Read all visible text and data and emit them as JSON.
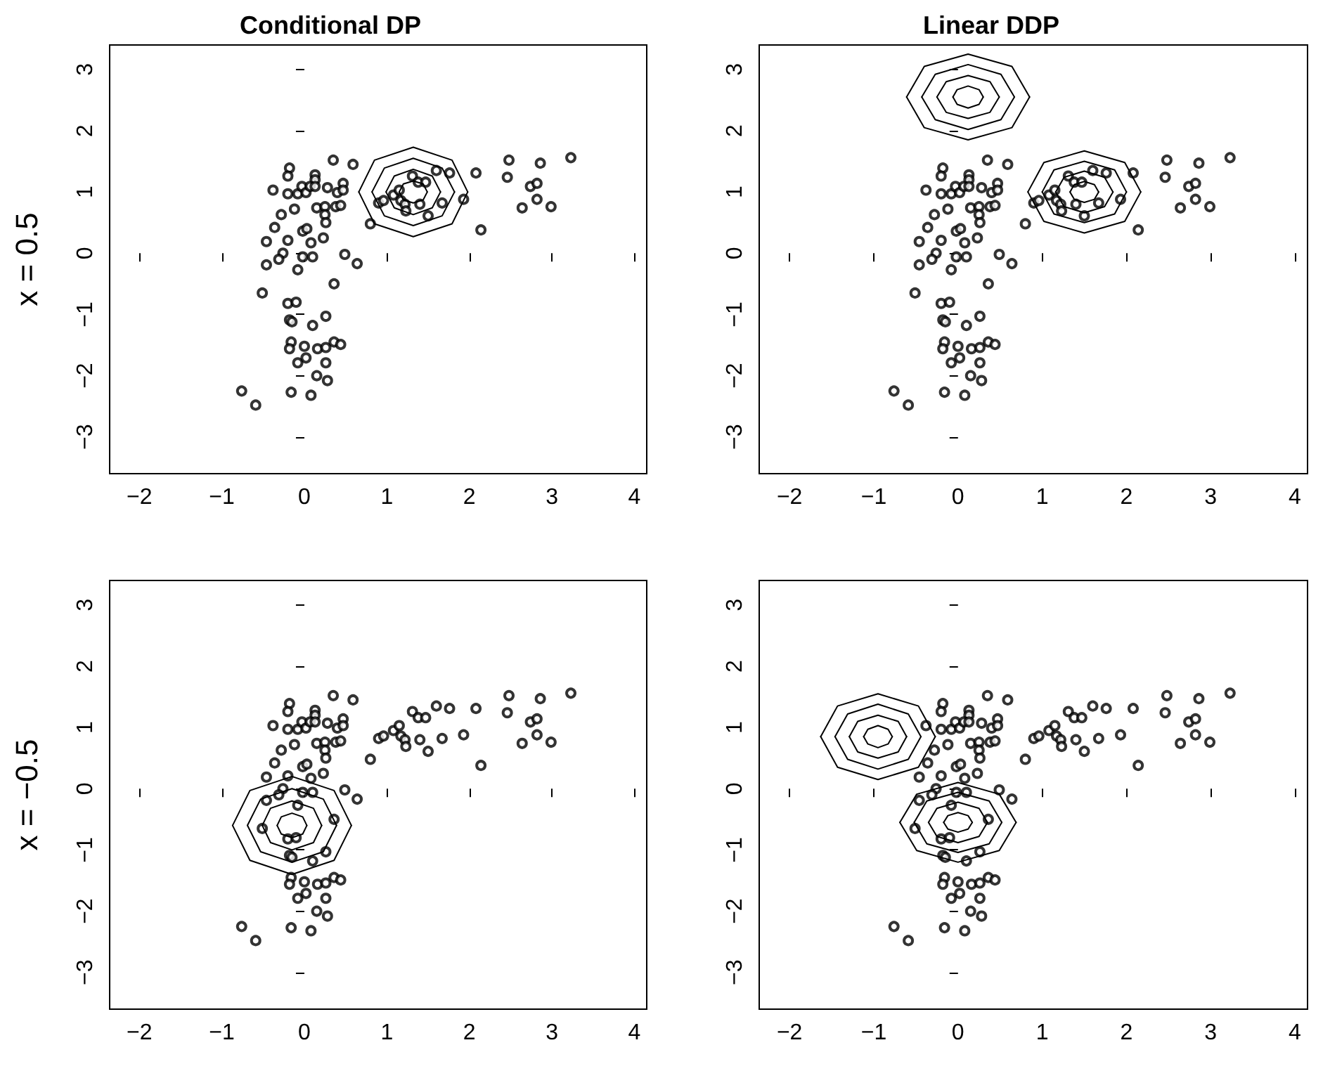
{
  "chart_data": [
    {
      "type": "scatter",
      "title": "Conditional DP",
      "ylabel": "x = 0.5",
      "xlim": [
        -2.36,
        4.15
      ],
      "ylim": [
        -3.6,
        3.4
      ],
      "xticks": [
        -2,
        -1,
        0,
        1,
        2,
        3,
        4
      ],
      "yticks": [
        -3,
        -2,
        -1,
        0,
        1,
        2,
        3
      ],
      "grid": false,
      "line_style": "solid",
      "series": [
        {
          "marker": "circle",
          "color": "#000000",
          "x": [
            -0.18,
            -0.2,
            0.35,
            0.59,
            0.13,
            0.13,
            -0.38,
            -0.2,
            -0.08,
            -0.03,
            0.02,
            0.07,
            0.13,
            0.28,
            0.4,
            0.47,
            0.47,
            -0.12,
            -0.28,
            0.15,
            0.25,
            0.38,
            0.44,
            0.25,
            0.26,
            -0.36,
            -0.02,
            0.03,
            -0.46,
            -0.2,
            0.08,
            0.23,
            -0.26,
            -0.31,
            -0.02,
            0.1,
            0.49,
            0.64,
            -0.46,
            -0.08,
            0.36,
            -0.51,
            -0.2,
            -0.1,
            -0.18,
            -0.15,
            0.26,
            0.1,
            -0.16,
            -0.18,
            0.0,
            0.16,
            0.26,
            0.36,
            0.44,
            -0.08,
            0.02,
            0.26,
            0.15,
            0.28,
            -0.76,
            -0.59,
            -0.16,
            0.08,
            0.8,
            0.9,
            0.96,
            1.08,
            1.15,
            1.17,
            1.22,
            1.23,
            1.31,
            1.38,
            1.47,
            1.4,
            1.5,
            1.6,
            1.67,
            1.76,
            1.93,
            2.08,
            2.14,
            2.48,
            2.86,
            3.23,
            2.46,
            2.74,
            2.82,
            2.82,
            2.64,
            2.99
          ],
          "values": [
            1.39,
            1.26,
            1.52,
            1.45,
            1.28,
            1.2,
            1.03,
            0.97,
            0.97,
            1.09,
            0.99,
            1.09,
            1.09,
            1.07,
            0.99,
            1.14,
            1.03,
            0.72,
            0.63,
            0.74,
            0.76,
            0.76,
            0.78,
            0.63,
            0.5,
            0.42,
            0.36,
            0.4,
            0.19,
            0.21,
            0.17,
            0.25,
            0.0,
            -0.1,
            -0.06,
            -0.06,
            -0.02,
            -0.17,
            -0.19,
            -0.27,
            -0.5,
            -0.65,
            -0.82,
            -0.8,
            -1.09,
            -1.12,
            -1.03,
            -1.18,
            -1.45,
            -1.56,
            -1.52,
            -1.56,
            -1.54,
            -1.45,
            -1.49,
            -1.79,
            -1.71,
            -1.79,
            -2.0,
            -2.08,
            -2.25,
            -2.48,
            -2.27,
            -2.32,
            0.48,
            0.82,
            0.86,
            0.95,
            1.03,
            0.86,
            0.8,
            0.69,
            1.26,
            1.16,
            1.16,
            0.8,
            0.61,
            1.35,
            0.82,
            1.31,
            0.88,
            1.31,
            0.38,
            1.52,
            1.47,
            1.56,
            1.24,
            1.09,
            1.14,
            0.88,
            0.74,
            0.76
          ]
        },
        {
          "type": "line",
          "marker": "none",
          "color": "#000000",
          "x": [
            0.66,
            0.85,
            1.32,
            1.79,
            1.98
          ],
          "values": [
            1.0,
            1.52,
            1.73,
            1.52,
            1.0
          ]
        },
        {
          "type": "line",
          "marker": "none",
          "color": "#000000",
          "x": [
            0.66,
            0.85,
            1.32,
            1.79,
            1.98
          ],
          "values": [
            1.0,
            0.48,
            0.27,
            0.48,
            1.0
          ]
        },
        {
          "type": "line",
          "marker": "none",
          "color": "#000000",
          "x": [
            0.82,
            0.97,
            1.32,
            1.67,
            1.82
          ],
          "values": [
            1.0,
            1.39,
            1.55,
            1.39,
            1.0
          ]
        },
        {
          "type": "line",
          "marker": "none",
          "color": "#000000",
          "x": [
            0.82,
            0.97,
            1.32,
            1.67,
            1.82
          ],
          "values": [
            1.0,
            0.61,
            0.45,
            0.61,
            1.0
          ]
        },
        {
          "type": "line",
          "marker": "none",
          "color": "#000000",
          "x": [
            0.99,
            1.09,
            1.32,
            1.55,
            1.65
          ],
          "values": [
            1.0,
            1.26,
            1.37,
            1.26,
            1.0
          ]
        },
        {
          "type": "line",
          "marker": "none",
          "color": "#000000",
          "x": [
            0.99,
            1.09,
            1.32,
            1.55,
            1.65
          ],
          "values": [
            1.0,
            0.74,
            0.63,
            0.74,
            1.0
          ]
        },
        {
          "type": "line",
          "marker": "none",
          "color": "#000000",
          "x": [
            1.15,
            1.2,
            1.32,
            1.44,
            1.49
          ],
          "values": [
            1.0,
            1.13,
            1.18,
            1.13,
            1.0
          ]
        },
        {
          "type": "line",
          "marker": "none",
          "color": "#000000",
          "x": [
            1.15,
            1.2,
            1.32,
            1.44,
            1.49
          ],
          "values": [
            1.0,
            0.87,
            0.82,
            0.87,
            1.0
          ]
        }
      ]
    },
    {
      "type": "scatter",
      "title": "Linear DDP",
      "xlim": [
        -2.36,
        4.15
      ],
      "ylim": [
        -3.6,
        3.4
      ],
      "xticks": [
        -2,
        -1,
        0,
        1,
        2,
        3,
        4
      ],
      "yticks": [
        -3,
        -2,
        -1,
        0,
        1,
        2,
        3
      ],
      "grid": false,
      "line_style": "solid",
      "series": [
        {
          "marker": "circle",
          "color": "#000000",
          "x": [
            -0.18,
            -0.2,
            0.35,
            0.59,
            0.13,
            0.13,
            -0.38,
            -0.2,
            -0.08,
            -0.03,
            0.02,
            0.07,
            0.13,
            0.28,
            0.4,
            0.47,
            0.47,
            -0.12,
            -0.28,
            0.15,
            0.25,
            0.38,
            0.44,
            0.25,
            0.26,
            -0.36,
            -0.02,
            0.03,
            -0.46,
            -0.2,
            0.08,
            0.23,
            -0.26,
            -0.31,
            -0.02,
            0.1,
            0.49,
            0.64,
            -0.46,
            -0.08,
            0.36,
            -0.51,
            -0.2,
            -0.1,
            -0.18,
            -0.15,
            0.26,
            0.1,
            -0.16,
            -0.18,
            0.0,
            0.16,
            0.26,
            0.36,
            0.44,
            -0.08,
            0.02,
            0.26,
            0.15,
            0.28,
            -0.76,
            -0.59,
            -0.16,
            0.08,
            0.8,
            0.9,
            0.96,
            1.08,
            1.15,
            1.17,
            1.22,
            1.23,
            1.31,
            1.38,
            1.47,
            1.4,
            1.5,
            1.6,
            1.67,
            1.76,
            1.93,
            2.08,
            2.14,
            2.48,
            2.86,
            3.23,
            2.46,
            2.74,
            2.82,
            2.82,
            2.64,
            2.99
          ],
          "values": [
            1.39,
            1.26,
            1.52,
            1.45,
            1.28,
            1.2,
            1.03,
            0.97,
            0.97,
            1.09,
            0.99,
            1.09,
            1.09,
            1.07,
            0.99,
            1.14,
            1.03,
            0.72,
            0.63,
            0.74,
            0.76,
            0.76,
            0.78,
            0.63,
            0.5,
            0.42,
            0.36,
            0.4,
            0.19,
            0.21,
            0.17,
            0.25,
            0.0,
            -0.1,
            -0.06,
            -0.06,
            -0.02,
            -0.17,
            -0.19,
            -0.27,
            -0.5,
            -0.65,
            -0.82,
            -0.8,
            -1.09,
            -1.12,
            -1.03,
            -1.18,
            -1.45,
            -1.56,
            -1.52,
            -1.56,
            -1.54,
            -1.45,
            -1.49,
            -1.79,
            -1.71,
            -1.79,
            -2.0,
            -2.08,
            -2.25,
            -2.48,
            -2.27,
            -2.32,
            0.48,
            0.82,
            0.86,
            0.95,
            1.03,
            0.86,
            0.8,
            0.69,
            1.26,
            1.16,
            1.16,
            0.8,
            0.61,
            1.35,
            0.82,
            1.31,
            0.88,
            1.31,
            0.38,
            1.52,
            1.47,
            1.56,
            1.24,
            1.09,
            1.14,
            0.88,
            0.74,
            0.76
          ]
        },
        {
          "type": "line",
          "marker": "none",
          "color": "#000000",
          "x": [
            -0.61,
            -0.4,
            0.12,
            0.64,
            0.85
          ],
          "values": [
            2.55,
            3.05,
            3.25,
            3.05,
            2.55
          ]
        },
        {
          "type": "line",
          "marker": "none",
          "color": "#000000",
          "x": [
            -0.61,
            -0.4,
            0.12,
            0.64,
            0.85
          ],
          "values": [
            2.55,
            2.05,
            1.85,
            2.05,
            2.55
          ]
        },
        {
          "type": "line",
          "marker": "none",
          "color": "#000000",
          "x": [
            -0.43,
            -0.27,
            0.12,
            0.51,
            0.67
          ],
          "values": [
            2.55,
            2.92,
            3.08,
            2.92,
            2.55
          ]
        },
        {
          "type": "line",
          "marker": "none",
          "color": "#000000",
          "x": [
            -0.43,
            -0.27,
            0.12,
            0.51,
            0.67
          ],
          "values": [
            2.55,
            2.18,
            2.02,
            2.18,
            2.55
          ]
        },
        {
          "type": "line",
          "marker": "none",
          "color": "#000000",
          "x": [
            -0.25,
            -0.14,
            0.12,
            0.38,
            0.49
          ],
          "values": [
            2.55,
            2.8,
            2.9,
            2.8,
            2.55
          ]
        },
        {
          "type": "line",
          "marker": "none",
          "color": "#000000",
          "x": [
            -0.25,
            -0.14,
            0.12,
            0.38,
            0.49
          ],
          "values": [
            2.55,
            2.3,
            2.2,
            2.3,
            2.55
          ]
        },
        {
          "type": "line",
          "marker": "none",
          "color": "#000000",
          "x": [
            -0.06,
            -0.01,
            0.12,
            0.25,
            0.3
          ],
          "values": [
            2.55,
            2.67,
            2.73,
            2.67,
            2.55
          ]
        },
        {
          "type": "line",
          "marker": "none",
          "color": "#000000",
          "x": [
            -0.06,
            -0.01,
            0.12,
            0.25,
            0.3
          ],
          "values": [
            2.55,
            2.43,
            2.37,
            2.43,
            2.55
          ]
        },
        {
          "type": "line",
          "marker": "none",
          "color": "#000000",
          "x": [
            0.83,
            1.02,
            1.5,
            1.98,
            2.17
          ],
          "values": [
            1.0,
            1.48,
            1.67,
            1.48,
            1.0
          ]
        },
        {
          "type": "line",
          "marker": "none",
          "color": "#000000",
          "x": [
            0.83,
            1.02,
            1.5,
            1.98,
            2.17
          ],
          "values": [
            1.0,
            0.52,
            0.33,
            0.52,
            1.0
          ]
        },
        {
          "type": "line",
          "marker": "none",
          "color": "#000000",
          "x": [
            1.0,
            1.14,
            1.5,
            1.86,
            2.0
          ],
          "values": [
            1.0,
            1.36,
            1.5,
            1.36,
            1.0
          ]
        },
        {
          "type": "line",
          "marker": "none",
          "color": "#000000",
          "x": [
            1.0,
            1.14,
            1.5,
            1.86,
            2.0
          ],
          "values": [
            1.0,
            0.64,
            0.5,
            0.64,
            1.0
          ]
        },
        {
          "type": "line",
          "marker": "none",
          "color": "#000000",
          "x": [
            1.16,
            1.26,
            1.5,
            1.74,
            1.84
          ],
          "values": [
            1.0,
            1.24,
            1.34,
            1.24,
            1.0
          ]
        },
        {
          "type": "line",
          "marker": "none",
          "color": "#000000",
          "x": [
            1.16,
            1.26,
            1.5,
            1.74,
            1.84
          ],
          "values": [
            1.0,
            0.76,
            0.66,
            0.76,
            1.0
          ]
        },
        {
          "type": "line",
          "marker": "none",
          "color": "#000000",
          "x": [
            1.33,
            1.38,
            1.5,
            1.62,
            1.67
          ],
          "values": [
            1.0,
            1.12,
            1.17,
            1.12,
            1.0
          ]
        },
        {
          "type": "line",
          "marker": "none",
          "color": "#000000",
          "x": [
            1.33,
            1.38,
            1.5,
            1.62,
            1.67
          ],
          "values": [
            1.0,
            0.88,
            0.83,
            0.88,
            1.0
          ]
        }
      ]
    },
    {
      "type": "scatter",
      "ylabel": "x = −0.5",
      "xlim": [
        -2.36,
        4.15
      ],
      "ylim": [
        -3.6,
        3.4
      ],
      "xticks": [
        -2,
        -1,
        0,
        1,
        2,
        3,
        4
      ],
      "yticks": [
        -3,
        -2,
        -1,
        0,
        1,
        2,
        3
      ],
      "grid": false,
      "line_style": "solid",
      "series": [
        {
          "marker": "circle",
          "color": "#000000",
          "x": [
            -0.18,
            -0.2,
            0.35,
            0.59,
            0.13,
            0.13,
            -0.38,
            -0.2,
            -0.08,
            -0.03,
            0.02,
            0.07,
            0.13,
            0.28,
            0.4,
            0.47,
            0.47,
            -0.12,
            -0.28,
            0.15,
            0.25,
            0.38,
            0.44,
            0.25,
            0.26,
            -0.36,
            -0.02,
            0.03,
            -0.46,
            -0.2,
            0.08,
            0.23,
            -0.26,
            -0.31,
            -0.02,
            0.1,
            0.49,
            0.64,
            -0.46,
            -0.08,
            0.36,
            -0.51,
            -0.2,
            -0.1,
            -0.18,
            -0.15,
            0.26,
            0.1,
            -0.16,
            -0.18,
            0.0,
            0.16,
            0.26,
            0.36,
            0.44,
            -0.08,
            0.02,
            0.26,
            0.15,
            0.28,
            -0.76,
            -0.59,
            -0.16,
            0.08,
            0.8,
            0.9,
            0.96,
            1.08,
            1.15,
            1.17,
            1.22,
            1.23,
            1.31,
            1.38,
            1.47,
            1.4,
            1.5,
            1.6,
            1.67,
            1.76,
            1.93,
            2.08,
            2.14,
            2.48,
            2.86,
            3.23,
            2.46,
            2.74,
            2.82,
            2.82,
            2.64,
            2.99
          ],
          "values": [
            1.39,
            1.26,
            1.52,
            1.45,
            1.28,
            1.2,
            1.03,
            0.97,
            0.97,
            1.09,
            0.99,
            1.09,
            1.09,
            1.07,
            0.99,
            1.14,
            1.03,
            0.72,
            0.63,
            0.74,
            0.76,
            0.76,
            0.78,
            0.63,
            0.5,
            0.42,
            0.36,
            0.4,
            0.19,
            0.21,
            0.17,
            0.25,
            0.0,
            -0.1,
            -0.06,
            -0.06,
            -0.02,
            -0.17,
            -0.19,
            -0.27,
            -0.5,
            -0.65,
            -0.82,
            -0.8,
            -1.09,
            -1.12,
            -1.03,
            -1.18,
            -1.45,
            -1.56,
            -1.52,
            -1.56,
            -1.54,
            -1.45,
            -1.49,
            -1.79,
            -1.71,
            -1.79,
            -2.0,
            -2.08,
            -2.25,
            -2.48,
            -2.27,
            -2.32,
            0.48,
            0.82,
            0.86,
            0.95,
            1.03,
            0.86,
            0.8,
            0.69,
            1.26,
            1.16,
            1.16,
            0.8,
            0.61,
            1.35,
            0.82,
            1.31,
            0.88,
            1.31,
            0.38,
            1.52,
            1.47,
            1.56,
            1.24,
            1.09,
            1.14,
            0.88,
            0.74,
            0.76
          ]
        },
        {
          "type": "line",
          "marker": "none",
          "color": "#000000",
          "x": [
            -0.87,
            -0.66,
            -0.15,
            0.36,
            0.57
          ],
          "values": [
            -0.6,
            -0.03,
            0.2,
            -0.03,
            -0.6
          ]
        },
        {
          "type": "line",
          "marker": "none",
          "color": "#000000",
          "x": [
            -0.87,
            -0.66,
            -0.15,
            0.36,
            0.57
          ],
          "values": [
            -0.6,
            -1.17,
            -1.4,
            -1.17,
            -0.6
          ]
        },
        {
          "type": "line",
          "marker": "none",
          "color": "#000000",
          "x": [
            -0.69,
            -0.53,
            -0.15,
            0.23,
            0.39
          ],
          "values": [
            -0.6,
            -0.17,
            0.0,
            -0.17,
            -0.6
          ]
        },
        {
          "type": "line",
          "marker": "none",
          "color": "#000000",
          "x": [
            -0.69,
            -0.53,
            -0.15,
            0.23,
            0.39
          ],
          "values": [
            -0.6,
            -1.03,
            -1.2,
            -1.03,
            -0.6
          ]
        },
        {
          "type": "line",
          "marker": "none",
          "color": "#000000",
          "x": [
            -0.51,
            -0.41,
            -0.15,
            0.11,
            0.21
          ],
          "values": [
            -0.6,
            -0.32,
            -0.2,
            -0.32,
            -0.6
          ]
        },
        {
          "type": "line",
          "marker": "none",
          "color": "#000000",
          "x": [
            -0.51,
            -0.41,
            -0.15,
            0.11,
            0.21
          ],
          "values": [
            -0.6,
            -0.88,
            -1.0,
            -0.88,
            -0.6
          ]
        },
        {
          "type": "line",
          "marker": "none",
          "color": "#000000",
          "x": [
            -0.33,
            -0.28,
            -0.15,
            -0.02,
            0.03
          ],
          "values": [
            -0.6,
            -0.46,
            -0.4,
            -0.46,
            -0.6
          ]
        },
        {
          "type": "line",
          "marker": "none",
          "color": "#000000",
          "x": [
            -0.33,
            -0.28,
            -0.15,
            -0.02,
            0.03
          ],
          "values": [
            -0.6,
            -0.74,
            -0.8,
            -0.74,
            -0.6
          ]
        }
      ]
    },
    {
      "type": "scatter",
      "xlim": [
        -2.36,
        4.15
      ],
      "ylim": [
        -3.6,
        3.4
      ],
      "xticks": [
        -2,
        -1,
        0,
        1,
        2,
        3,
        4
      ],
      "yticks": [
        -3,
        -2,
        -1,
        0,
        1,
        2,
        3
      ],
      "grid": false,
      "line_style": "solid",
      "series": [
        {
          "marker": "circle",
          "color": "#000000",
          "x": [
            -0.18,
            -0.2,
            0.35,
            0.59,
            0.13,
            0.13,
            -0.38,
            -0.2,
            -0.08,
            -0.03,
            0.02,
            0.07,
            0.13,
            0.28,
            0.4,
            0.47,
            0.47,
            -0.12,
            -0.28,
            0.15,
            0.25,
            0.38,
            0.44,
            0.25,
            0.26,
            -0.36,
            -0.02,
            0.03,
            -0.46,
            -0.2,
            0.08,
            0.23,
            -0.26,
            -0.31,
            -0.02,
            0.1,
            0.49,
            0.64,
            -0.46,
            -0.08,
            0.36,
            -0.51,
            -0.2,
            -0.1,
            -0.18,
            -0.15,
            0.26,
            0.1,
            -0.16,
            -0.18,
            0.0,
            0.16,
            0.26,
            0.36,
            0.44,
            -0.08,
            0.02,
            0.26,
            0.15,
            0.28,
            -0.76,
            -0.59,
            -0.16,
            0.08,
            0.8,
            0.9,
            0.96,
            1.08,
            1.15,
            1.17,
            1.22,
            1.23,
            1.31,
            1.38,
            1.47,
            1.4,
            1.5,
            1.6,
            1.67,
            1.76,
            1.93,
            2.08,
            2.14,
            2.48,
            2.86,
            3.23,
            2.46,
            2.74,
            2.82,
            2.82,
            2.64,
            2.99
          ],
          "values": [
            1.39,
            1.26,
            1.52,
            1.45,
            1.28,
            1.2,
            1.03,
            0.97,
            0.97,
            1.09,
            0.99,
            1.09,
            1.09,
            1.07,
            0.99,
            1.14,
            1.03,
            0.72,
            0.63,
            0.74,
            0.76,
            0.76,
            0.78,
            0.63,
            0.5,
            0.42,
            0.36,
            0.4,
            0.19,
            0.21,
            0.17,
            0.25,
            0.0,
            -0.1,
            -0.06,
            -0.06,
            -0.02,
            -0.17,
            -0.19,
            -0.27,
            -0.5,
            -0.65,
            -0.82,
            -0.8,
            -1.09,
            -1.12,
            -1.03,
            -1.18,
            -1.45,
            -1.56,
            -1.52,
            -1.56,
            -1.54,
            -1.45,
            -1.49,
            -1.79,
            -1.71,
            -1.79,
            -2.0,
            -2.08,
            -2.25,
            -2.48,
            -2.27,
            -2.32,
            0.48,
            0.82,
            0.86,
            0.95,
            1.03,
            0.86,
            0.8,
            0.69,
            1.26,
            1.16,
            1.16,
            0.8,
            0.61,
            1.35,
            0.82,
            1.31,
            0.88,
            1.31,
            0.38,
            1.52,
            1.47,
            1.56,
            1.24,
            1.09,
            1.14,
            0.88,
            0.74,
            0.76
          ]
        },
        {
          "type": "line",
          "marker": "none",
          "color": "#000000",
          "x": [
            -1.63,
            -1.43,
            -0.95,
            -0.47,
            -0.27
          ],
          "values": [
            0.85,
            1.35,
            1.55,
            1.35,
            0.85
          ]
        },
        {
          "type": "line",
          "marker": "none",
          "color": "#000000",
          "x": [
            -1.63,
            -1.43,
            -0.95,
            -0.47,
            -0.27
          ],
          "values": [
            0.85,
            0.35,
            0.15,
            0.35,
            0.85
          ]
        },
        {
          "type": "line",
          "marker": "none",
          "color": "#000000",
          "x": [
            -1.46,
            -1.31,
            -0.95,
            -0.59,
            -0.44
          ],
          "values": [
            0.85,
            1.22,
            1.38,
            1.22,
            0.85
          ]
        },
        {
          "type": "line",
          "marker": "none",
          "color": "#000000",
          "x": [
            -1.46,
            -1.31,
            -0.95,
            -0.59,
            -0.44
          ],
          "values": [
            0.85,
            0.48,
            0.32,
            0.48,
            0.85
          ]
        },
        {
          "type": "line",
          "marker": "none",
          "color": "#000000",
          "x": [
            -1.29,
            -1.19,
            -0.95,
            -0.71,
            -0.61
          ],
          "values": [
            0.85,
            1.1,
            1.2,
            1.1,
            0.85
          ]
        },
        {
          "type": "line",
          "marker": "none",
          "color": "#000000",
          "x": [
            -1.29,
            -1.19,
            -0.95,
            -0.71,
            -0.61
          ],
          "values": [
            0.85,
            0.6,
            0.5,
            0.6,
            0.85
          ]
        },
        {
          "type": "line",
          "marker": "none",
          "color": "#000000",
          "x": [
            -1.12,
            -1.07,
            -0.95,
            -0.83,
            -0.78
          ],
          "values": [
            0.85,
            0.97,
            1.03,
            0.97,
            0.85
          ]
        },
        {
          "type": "line",
          "marker": "none",
          "color": "#000000",
          "x": [
            -1.12,
            -1.07,
            -0.95,
            -0.83,
            -0.78
          ],
          "values": [
            0.85,
            0.73,
            0.67,
            0.73,
            0.85
          ]
        },
        {
          "type": "line",
          "marker": "none",
          "color": "#000000",
          "x": [
            -0.69,
            -0.49,
            0.0,
            0.49,
            0.69
          ],
          "values": [
            -0.55,
            -0.09,
            0.1,
            -0.09,
            -0.55
          ]
        },
        {
          "type": "line",
          "marker": "none",
          "color": "#000000",
          "x": [
            -0.69,
            -0.49,
            0.0,
            0.49,
            0.69
          ],
          "values": [
            -0.55,
            -1.01,
            -1.2,
            -1.01,
            -0.55
          ]
        },
        {
          "type": "line",
          "marker": "none",
          "color": "#000000",
          "x": [
            -0.52,
            -0.37,
            0.0,
            0.37,
            0.52
          ],
          "values": [
            -0.55,
            -0.2,
            -0.06,
            -0.2,
            -0.55
          ]
        },
        {
          "type": "line",
          "marker": "none",
          "color": "#000000",
          "x": [
            -0.52,
            -0.37,
            0.0,
            0.37,
            0.52
          ],
          "values": [
            -0.55,
            -0.9,
            -1.04,
            -0.9,
            -0.55
          ]
        },
        {
          "type": "line",
          "marker": "none",
          "color": "#000000",
          "x": [
            -0.35,
            -0.25,
            0.0,
            0.25,
            0.35
          ],
          "values": [
            -0.55,
            -0.32,
            -0.22,
            -0.32,
            -0.55
          ]
        },
        {
          "type": "line",
          "marker": "none",
          "color": "#000000",
          "x": [
            -0.35,
            -0.25,
            0.0,
            0.25,
            0.35
          ],
          "values": [
            -0.55,
            -0.78,
            -0.88,
            -0.78,
            -0.55
          ]
        },
        {
          "type": "line",
          "marker": "none",
          "color": "#000000",
          "x": [
            -0.17,
            -0.12,
            0.0,
            0.12,
            0.17
          ],
          "values": [
            -0.55,
            -0.44,
            -0.39,
            -0.44,
            -0.55
          ]
        },
        {
          "type": "line",
          "marker": "none",
          "color": "#000000",
          "x": [
            -0.17,
            -0.12,
            0.0,
            0.12,
            0.17
          ],
          "values": [
            -0.55,
            -0.66,
            -0.71,
            -0.66,
            -0.55
          ]
        }
      ]
    }
  ]
}
